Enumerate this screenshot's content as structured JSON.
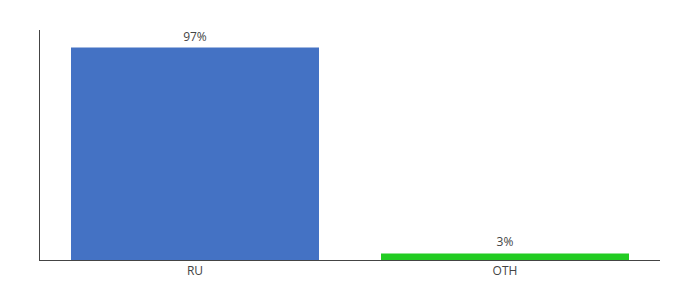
{
  "chart_data": {
    "type": "bar",
    "categories": [
      "RU",
      "OTH"
    ],
    "values": [
      97,
      3
    ],
    "value_labels": [
      "97%",
      "3%"
    ],
    "colors": [
      "#4472c4",
      "#22cc22"
    ],
    "ylim": [
      0,
      105
    ],
    "data_labels": true,
    "tick_labels": "x",
    "grid": false
  }
}
